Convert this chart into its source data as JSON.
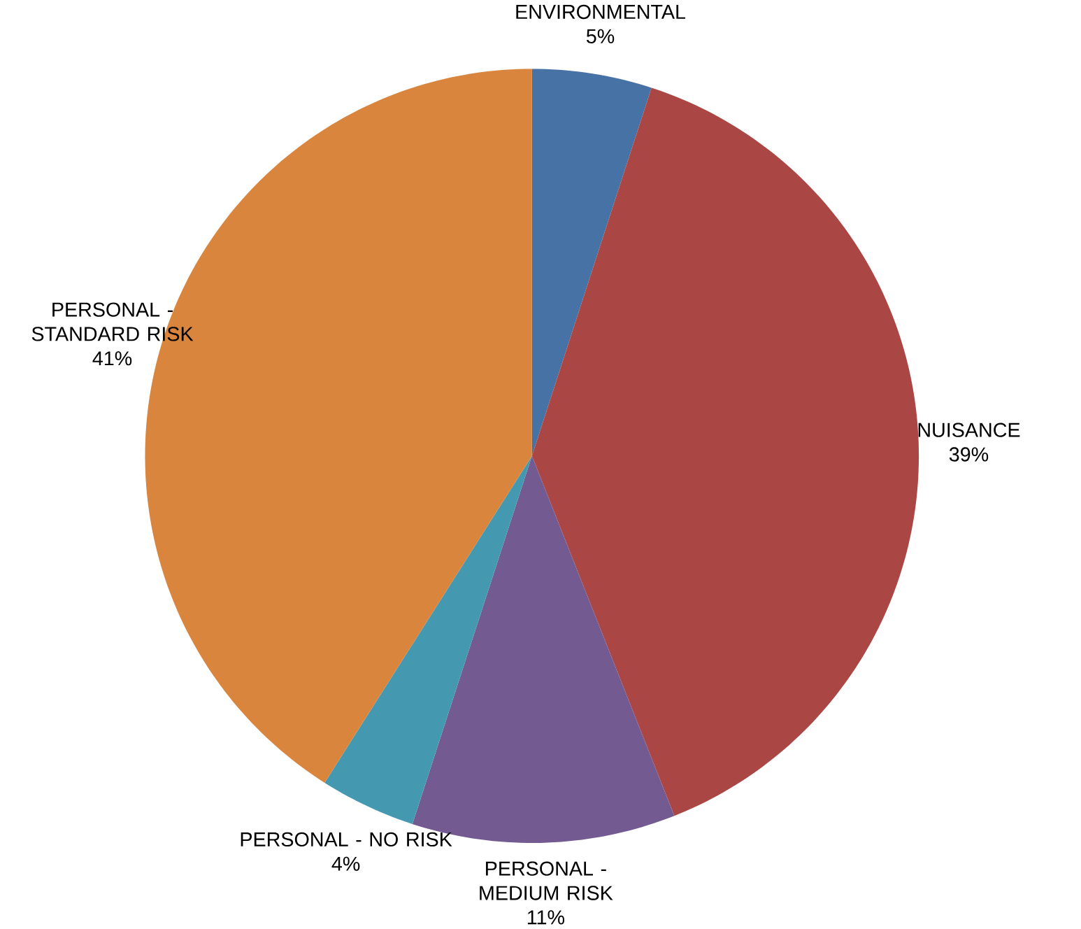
{
  "chart_data": {
    "type": "pie",
    "categories": [
      "ENVIRONMENTAL",
      "NUISANCE",
      "PERSONAL - MEDIUM RISK",
      "PERSONAL - NO RISK",
      "PERSONAL - STANDARD RISK"
    ],
    "values": [
      5,
      39,
      11,
      4,
      41
    ],
    "value_labels": [
      "5%",
      "39%",
      "11%",
      "4%",
      "41%"
    ],
    "colors": [
      "#4672a6",
      "#aa4744",
      "#735a91",
      "#4499b0",
      "#d9853d"
    ]
  }
}
